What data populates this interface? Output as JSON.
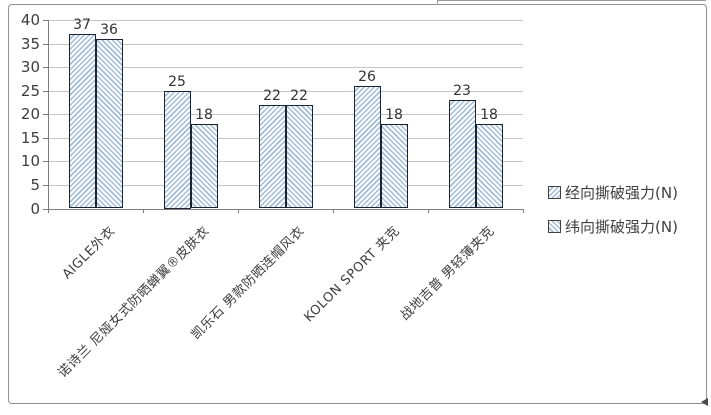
{
  "chart_data": {
    "type": "bar",
    "title": "",
    "xlabel": "",
    "ylabel": "",
    "categories": [
      "AIGLE外衣",
      "诺诗兰 尼娅女式防晒蝉翼®皮肤衣",
      "凯乐石 男款防晒连帽风衣",
      "KOLON SPORT 夹克",
      "战地吉普 男轻薄夹克"
    ],
    "series": [
      {
        "name": "经向撕破强力(N)",
        "values": [
          37,
          25,
          22,
          26,
          23
        ],
        "hatch": "forward"
      },
      {
        "name": "纬向撕破强力(N)",
        "values": [
          36,
          18,
          22,
          18,
          18
        ],
        "hatch": "backward"
      }
    ],
    "ylim": [
      0,
      40
    ],
    "ytick_step": 5,
    "ytick_labels": [
      "0",
      "5",
      "10",
      "15",
      "20",
      "25",
      "30",
      "35",
      "40"
    ],
    "grid": true,
    "legend_position": "right",
    "bar_labels_shown": true,
    "colors": {
      "hatch_line": "#a2bdd5",
      "bar_fill": "#f7fafc",
      "bar_border": "#1b2433",
      "gridline": "#c6c6c6",
      "axis": "#7e7e7e",
      "text": "#3d3d3d",
      "outer_border": "#8f8f8f"
    }
  }
}
